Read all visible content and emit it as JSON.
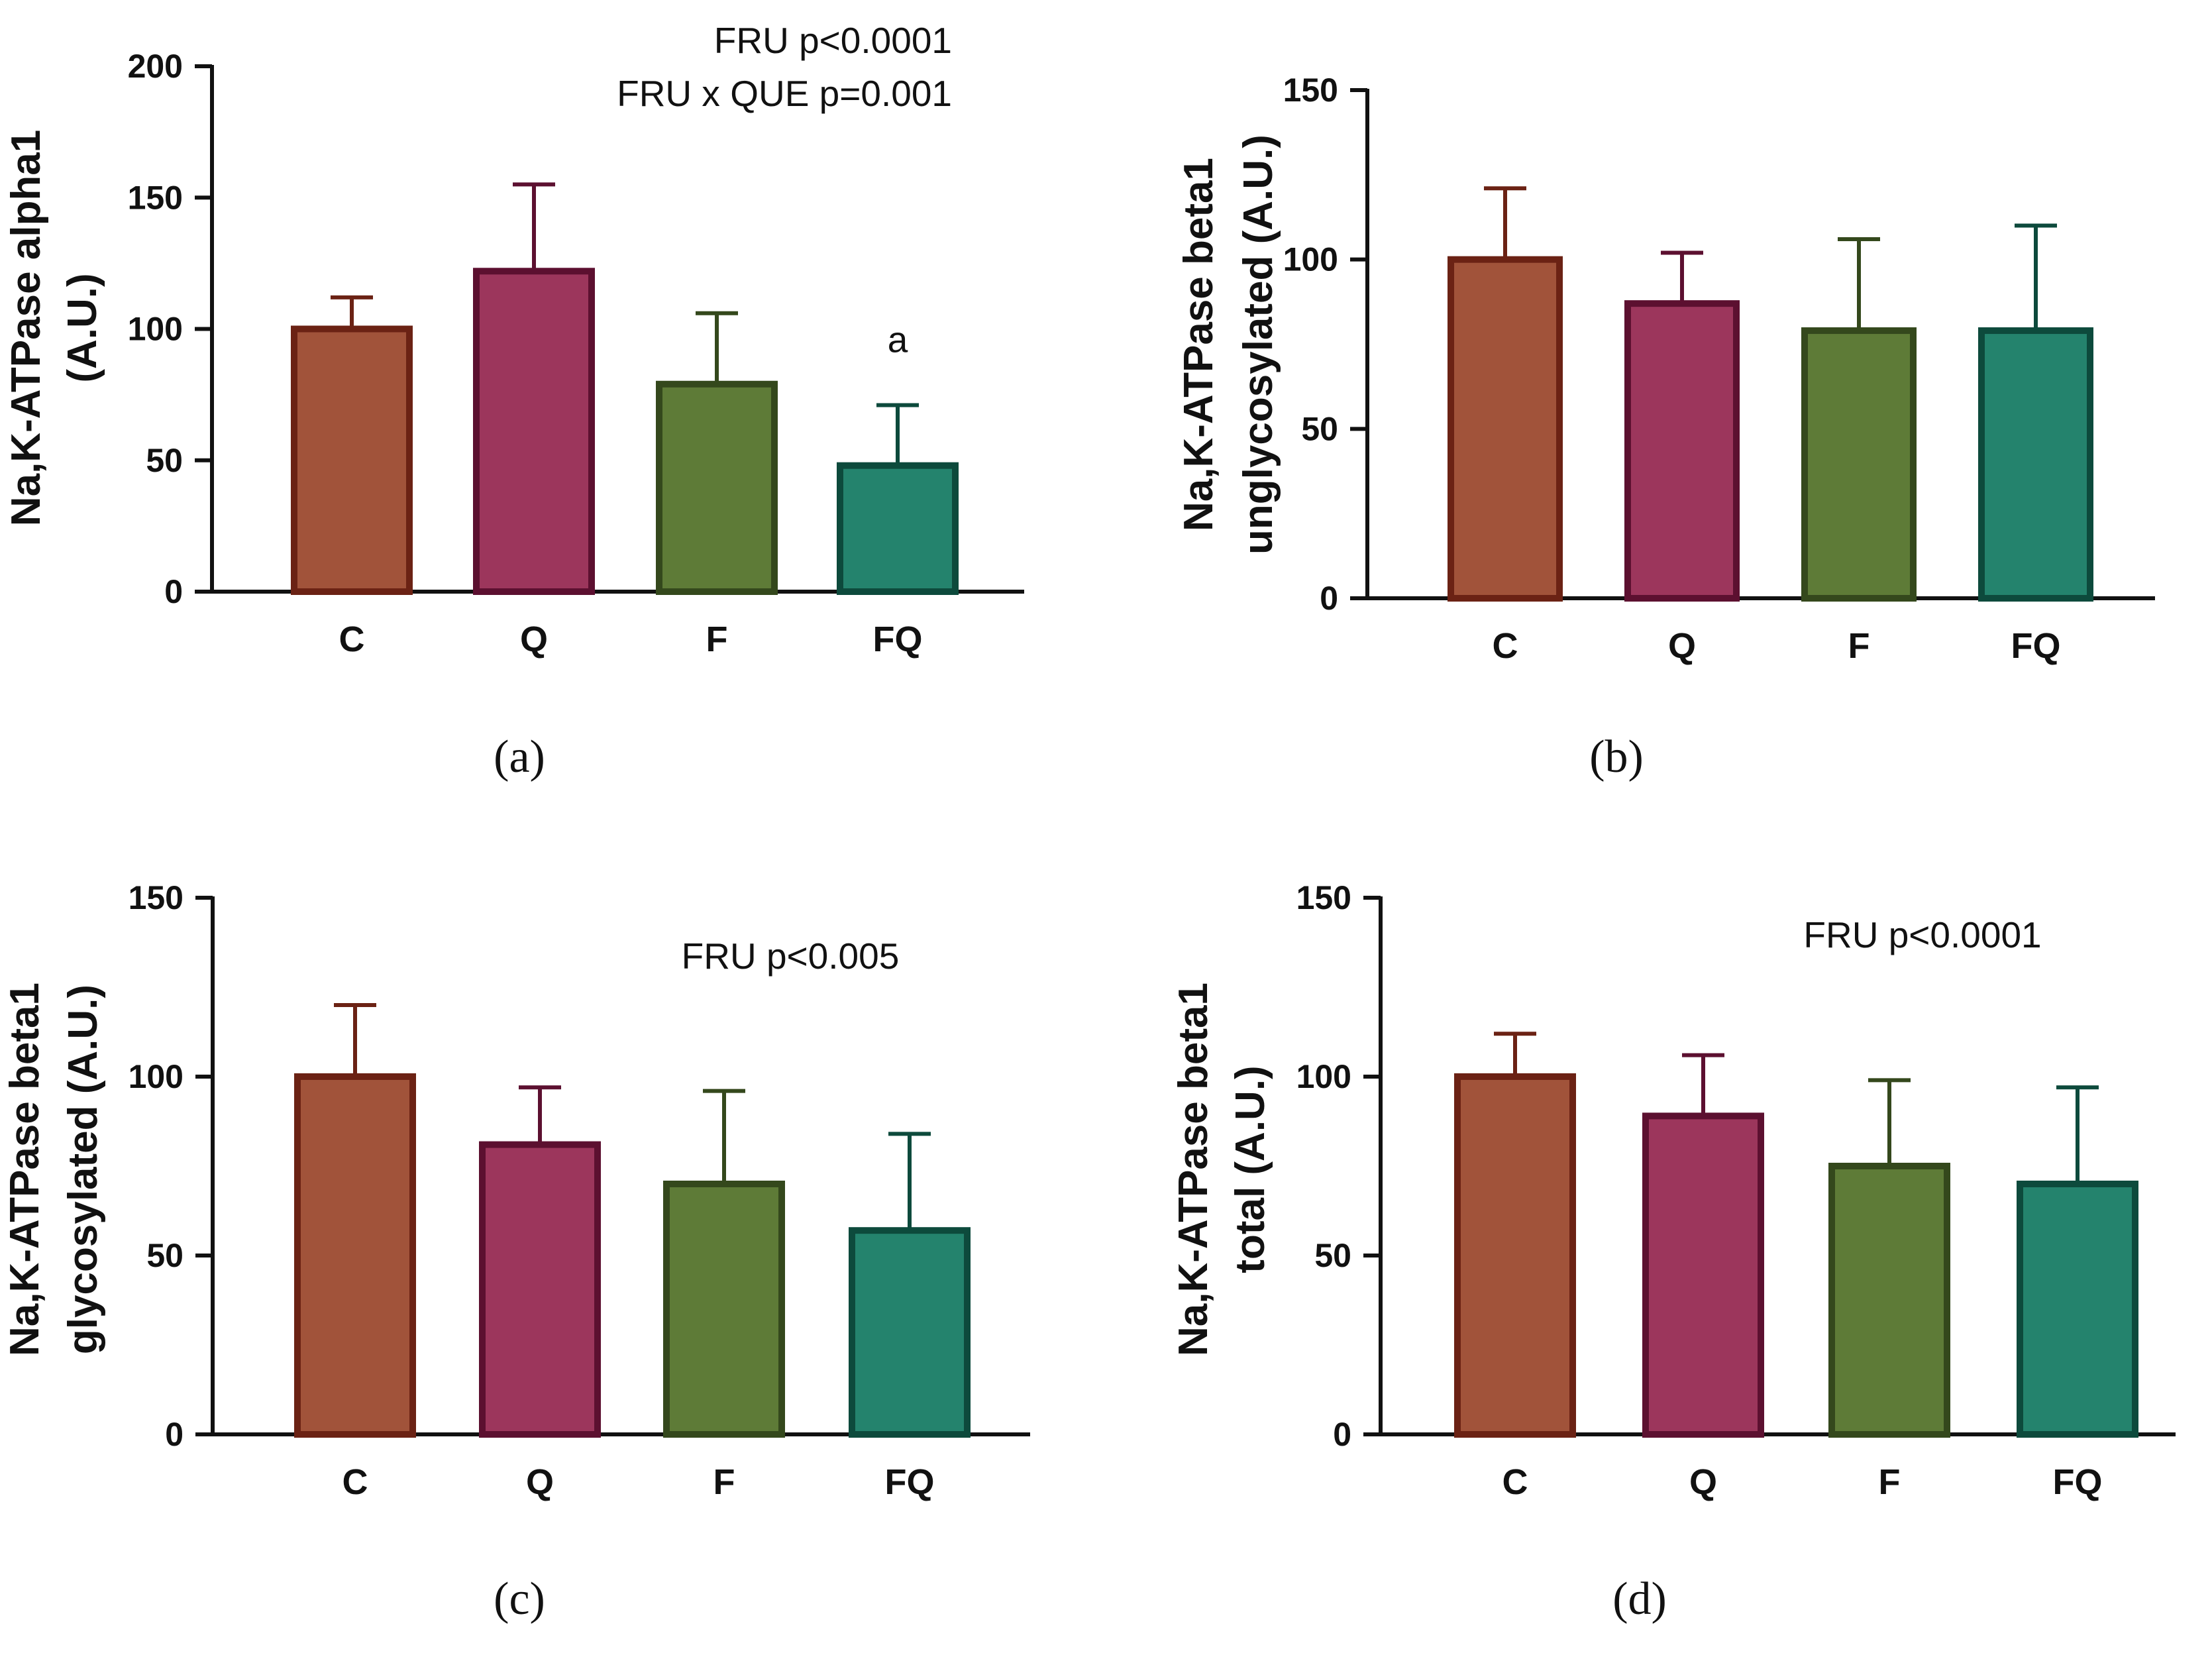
{
  "chart_data": [
    {
      "type": "bar",
      "panel_label": "(a)",
      "ylabel_lines": [
        "Na,K-ATPase alpha1",
        "(A.U.)"
      ],
      "categories": [
        "C",
        "Q",
        "F",
        "FQ"
      ],
      "values": [
        100,
        122,
        79,
        48
      ],
      "error": [
        12,
        33,
        27,
        23
      ],
      "yticks": [
        0,
        50,
        100,
        150,
        200
      ],
      "ylim": [
        0,
        200
      ],
      "annotations": [
        "FRU p<0.0001",
        "FRU x QUE  p=0.001"
      ],
      "bar_marks": [
        "",
        "",
        "",
        "a"
      ],
      "colors": {
        "fill": [
          "#a1533a",
          "#9c365c",
          "#5e7b37",
          "#24836d"
        ],
        "stroke": [
          "#6b2214",
          "#5c1030",
          "#34481c",
          "#0d4a3c"
        ]
      }
    },
    {
      "type": "bar",
      "panel_label": "(b)",
      "ylabel_lines": [
        "Na,K-ATPase beta1",
        "unglycosylated (A.U.)"
      ],
      "categories": [
        "C",
        "Q",
        "F",
        "FQ"
      ],
      "values": [
        100,
        87,
        79,
        79
      ],
      "error": [
        21,
        15,
        27,
        31
      ],
      "yticks": [
        0,
        50,
        100,
        150
      ],
      "ylim": [
        0,
        150
      ],
      "annotations": [],
      "bar_marks": [
        "",
        "",
        "",
        ""
      ],
      "colors": {
        "fill": [
          "#a1533a",
          "#9c365c",
          "#5e7b37",
          "#24836d"
        ],
        "stroke": [
          "#6b2214",
          "#5c1030",
          "#34481c",
          "#0d4a3c"
        ]
      }
    },
    {
      "type": "bar",
      "panel_label": "(c)",
      "ylabel_lines": [
        "Na,K-ATPase beta1",
        "glycosylated (A.U.)"
      ],
      "categories": [
        "C",
        "Q",
        "F",
        "FQ"
      ],
      "values": [
        100,
        81,
        70,
        57
      ],
      "error": [
        20,
        16,
        26,
        27
      ],
      "yticks": [
        0,
        50,
        100,
        150
      ],
      "ylim": [
        0,
        150
      ],
      "annotations": [
        "FRU p<0.005"
      ],
      "bar_marks": [
        "",
        "",
        "",
        ""
      ],
      "colors": {
        "fill": [
          "#a1533a",
          "#9c365c",
          "#5e7b37",
          "#24836d"
        ],
        "stroke": [
          "#6b2214",
          "#5c1030",
          "#34481c",
          "#0d4a3c"
        ]
      }
    },
    {
      "type": "bar",
      "panel_label": "(d)",
      "ylabel_lines": [
        "Na,K-ATPase beta1",
        "total (A.U.)"
      ],
      "categories": [
        "C",
        "Q",
        "F",
        "FQ"
      ],
      "values": [
        100,
        89,
        75,
        70
      ],
      "error": [
        12,
        17,
        24,
        27
      ],
      "yticks": [
        0,
        50,
        100,
        150
      ],
      "ylim": [
        0,
        150
      ],
      "annotations": [
        "FRU p<0.0001"
      ],
      "bar_marks": [
        "",
        "",
        "",
        ""
      ],
      "colors": {
        "fill": [
          "#a1533a",
          "#9c365c",
          "#5e7b37",
          "#24836d"
        ],
        "stroke": [
          "#6b2214",
          "#5c1030",
          "#34481c",
          "#0d4a3c"
        ]
      }
    }
  ]
}
